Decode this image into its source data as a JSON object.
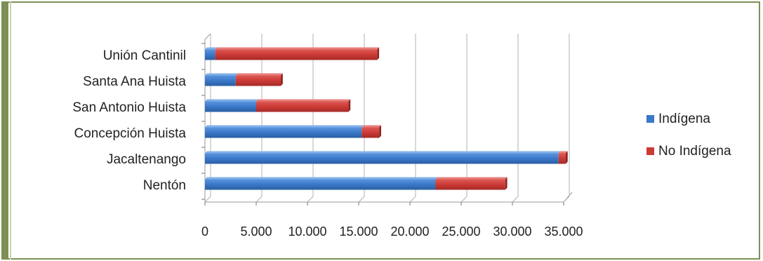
{
  "chart_data": {
    "type": "bar",
    "orientation": "horizontal",
    "stacked": true,
    "style": "3d",
    "categories": [
      "Nentón",
      "Jacaltenango",
      "Concepción Huista",
      "San Antonio Huista",
      "Santa Ana Huista",
      "Unión Cantinil"
    ],
    "series": [
      {
        "name": "Indígena",
        "values": [
          22500,
          34500,
          15300,
          5000,
          3000,
          1000
        ]
      },
      {
        "name": "No Indígena",
        "values": [
          6800,
          700,
          1700,
          9000,
          4400,
          15800
        ]
      }
    ],
    "x_tick_labels": [
      "0",
      "5.000",
      "10.000",
      "15.000",
      "20.000",
      "25.000",
      "30.000",
      "35.000"
    ],
    "xlim": [
      0,
      35000
    ],
    "grid": true,
    "legend_position": "right"
  },
  "colors": {
    "Indígena": "#3a78c9",
    "No Indígena": "#cc3a36",
    "frame": "#7d8f55"
  }
}
